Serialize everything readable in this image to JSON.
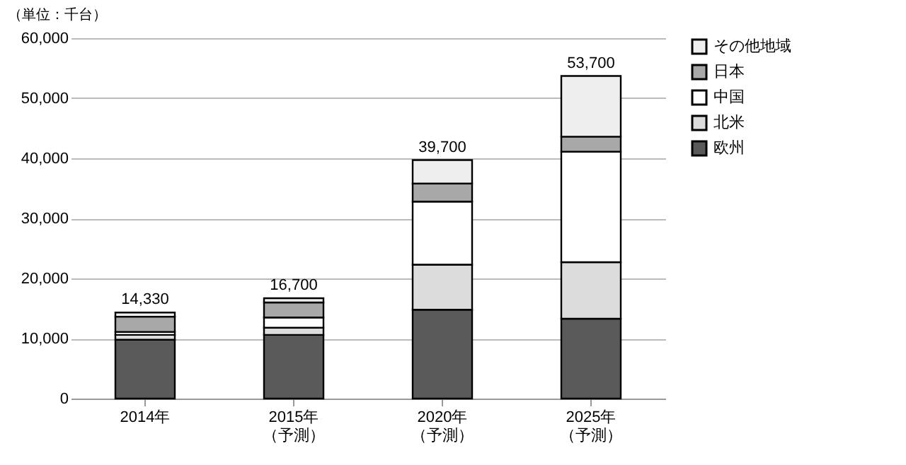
{
  "chart_data": {
    "type": "bar",
    "stacked": true,
    "ylabel": "（単位：千台）",
    "categories": [
      "2014年",
      "2015年（予測）",
      "2020年（予測）",
      "2025年（予測）"
    ],
    "series": [
      {
        "name": "欧州",
        "color": "#5a5a5a",
        "values": [
          9800,
          10600,
          14800,
          13300
        ]
      },
      {
        "name": "北米",
        "color": "#dcdcdc",
        "values": [
          800,
          1200,
          7500,
          9400
        ]
      },
      {
        "name": "中国",
        "color": "#ffffff",
        "values": [
          500,
          1700,
          10500,
          18400
        ]
      },
      {
        "name": "日本",
        "color": "#a8a8a8",
        "values": [
          2530,
          2500,
          3000,
          2500
        ]
      },
      {
        "name": "その他地域",
        "color": "#eeeeee",
        "values": [
          700,
          700,
          3900,
          10100
        ]
      }
    ],
    "totals": [
      "14,330",
      "16,700",
      "39,700",
      "53,700"
    ],
    "ylim": [
      0,
      60000
    ],
    "yticks": [
      0,
      {
        "value": 10000,
        "label": "10,000"
      },
      {
        "value": 20000,
        "label": "20,000"
      },
      {
        "value": 30000,
        "label": "30,000"
      },
      {
        "value": 40000,
        "label": "40,000"
      },
      {
        "value": 50000,
        "label": "50,000"
      },
      {
        "value": 60000,
        "label": "60,000"
      }
    ],
    "grid": "y",
    "legend": "right"
  }
}
